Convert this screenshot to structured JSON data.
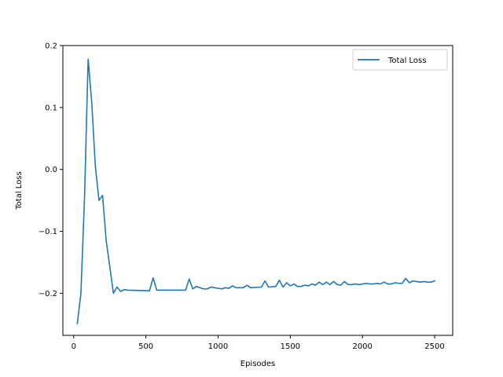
{
  "chart_data": {
    "type": "line",
    "title": "",
    "xlabel": "Episodes",
    "ylabel": "Total Loss",
    "xlim": [
      -75,
      2625
    ],
    "ylim": [
      -0.268,
      0.2
    ],
    "xticks": [
      0,
      500,
      1000,
      1500,
      2000,
      2500
    ],
    "xtick_labels": [
      "0",
      "500",
      "1000",
      "1500",
      "2000",
      "2500"
    ],
    "yticks": [
      -0.2,
      -0.1,
      0.0,
      0.1,
      0.2
    ],
    "ytick_labels": [
      "−0.2",
      "−0.1",
      "0.0",
      "0.1",
      "0.2"
    ],
    "grid": false,
    "legend_position": "top-right",
    "series": [
      {
        "name": "Total Loss",
        "color": "#1f77b4",
        "x": [
          25,
          50,
          75,
          100,
          125,
          150,
          175,
          200,
          225,
          250,
          275,
          300,
          325,
          350,
          375,
          525,
          550,
          575,
          775,
          800,
          825,
          850,
          900,
          925,
          950,
          1025,
          1050,
          1075,
          1100,
          1125,
          1175,
          1200,
          1225,
          1300,
          1325,
          1350,
          1400,
          1425,
          1450,
          1475,
          1500,
          1525,
          1550,
          1575,
          1600,
          1625,
          1650,
          1675,
          1700,
          1725,
          1750,
          1775,
          1800,
          1825,
          1850,
          1875,
          1900,
          1925,
          1950,
          1975,
          2000,
          2025,
          2050,
          2075,
          2100,
          2125,
          2150,
          2175,
          2200,
          2225,
          2250,
          2275,
          2300,
          2325,
          2350,
          2375,
          2400,
          2425,
          2450,
          2475,
          2500
        ],
        "y": [
          -0.249,
          -0.2,
          -0.045,
          0.178,
          0.108,
          0.005,
          -0.05,
          -0.042,
          -0.115,
          -0.157,
          -0.2,
          -0.19,
          -0.197,
          -0.194,
          -0.195,
          -0.196,
          -0.175,
          -0.195,
          -0.195,
          -0.177,
          -0.193,
          -0.189,
          -0.193,
          -0.193,
          -0.19,
          -0.193,
          -0.191,
          -0.192,
          -0.188,
          -0.191,
          -0.191,
          -0.187,
          -0.191,
          -0.19,
          -0.18,
          -0.19,
          -0.189,
          -0.179,
          -0.19,
          -0.183,
          -0.188,
          -0.185,
          -0.189,
          -0.189,
          -0.187,
          -0.188,
          -0.185,
          -0.187,
          -0.182,
          -0.186,
          -0.182,
          -0.186,
          -0.181,
          -0.186,
          -0.187,
          -0.181,
          -0.186,
          -0.186,
          -0.185,
          -0.186,
          -0.185,
          -0.184,
          -0.185,
          -0.185,
          -0.184,
          -0.185,
          -0.182,
          -0.185,
          -0.185,
          -0.183,
          -0.184,
          -0.184,
          -0.176,
          -0.183,
          -0.18,
          -0.181,
          -0.182,
          -0.181,
          -0.182,
          -0.182,
          -0.18
        ]
      }
    ]
  }
}
